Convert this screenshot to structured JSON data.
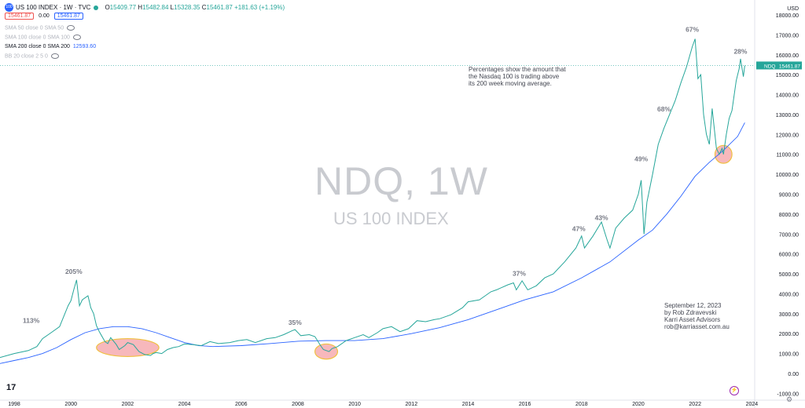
{
  "header": {
    "symbol_badge": "100",
    "title": "US 100 INDEX · 1W · TVC",
    "ohlc": [
      {
        "k": "O",
        "v": "15409.77"
      },
      {
        "k": "H",
        "v": "15482.84"
      },
      {
        "k": "L",
        "v": "15328.35"
      },
      {
        "k": "C",
        "v": "15461.87 +181.63 (+1.19%)"
      }
    ],
    "sell_price": "15461.87",
    "spread": "0.00",
    "buy_price": "15461.87"
  },
  "indicators": [
    {
      "label": "SMA 50 close 0 SMA 50",
      "value": "",
      "active": false
    },
    {
      "label": "SMA 100 close 0 SMA 100",
      "value": "",
      "active": false
    },
    {
      "label": "SMA 200 close 0 SMA 200",
      "value": "12593.60",
      "active": true
    },
    {
      "label": "BB 20 close 2 5 0",
      "value": "",
      "active": false
    }
  ],
  "watermark": {
    "symbol": "NDQ, 1W",
    "name": "US 100 INDEX"
  },
  "note_lines": [
    "Percentages show the amount that",
    "the Nasdaq 100 is trading above",
    "its 200 week moving average."
  ],
  "signature_lines": [
    "September 12, 2023",
    "by Rob Zdravevski",
    "Karri Asset Advisors",
    "rob@karriasset.com.au"
  ],
  "logo": "17",
  "colors": {
    "price": "#26a69a",
    "sma": "#2962ff",
    "highlight_fill": "#f4a0a6",
    "highlight_stroke": "#f0c040",
    "price_tag": "#26a69a",
    "axis_text": "#131722"
  },
  "chart_data": {
    "type": "line",
    "title": "",
    "y_axis": {
      "currency": "USD",
      "ticks": [
        -1000,
        0,
        1000,
        2000,
        3000,
        4000,
        5000,
        6000,
        7000,
        8000,
        9000,
        10000,
        11000,
        12000,
        13000,
        14000,
        15000,
        16000,
        17000,
        18000
      ],
      "tick_labels": [
        "-1000.00",
        "0.00",
        "1000.00",
        "2000.00",
        "3000.00",
        "4000.00",
        "5000.00",
        "6000.00",
        "7000.00",
        "8000.00",
        "9000.00",
        "10000.00",
        "11000.00",
        "12000.00",
        "13000.00",
        "14000.00",
        "15000.00",
        "16000.00",
        "17000.00",
        "18000.00"
      ],
      "ylim": [
        -1000,
        18000
      ]
    },
    "x_axis": {
      "ticks": [
        1998,
        2000,
        2002,
        2004,
        2006,
        2008,
        2010,
        2012,
        2014,
        2016,
        2018,
        2020,
        2022,
        2024
      ],
      "xlim": [
        1997.5,
        2024.1
      ]
    },
    "series": [
      {
        "name": "NDQ",
        "last_value_label": "15461.87",
        "points": [
          [
            1997.5,
            800
          ],
          [
            1998.0,
            1000
          ],
          [
            1998.5,
            1150
          ],
          [
            1998.8,
            1350
          ],
          [
            1999.0,
            1750
          ],
          [
            1999.3,
            2050
          ],
          [
            1999.6,
            2350
          ],
          [
            1999.9,
            3400
          ],
          [
            2000.0,
            3650
          ],
          [
            2000.1,
            4200
          ],
          [
            2000.2,
            4700
          ],
          [
            2000.3,
            3400
          ],
          [
            2000.4,
            3700
          ],
          [
            2000.6,
            3900
          ],
          [
            2000.7,
            3300
          ],
          [
            2000.8,
            3000
          ],
          [
            2000.9,
            2400
          ],
          [
            2001.0,
            2100
          ],
          [
            2001.2,
            1600
          ],
          [
            2001.3,
            1500
          ],
          [
            2001.4,
            1800
          ],
          [
            2001.6,
            1450
          ],
          [
            2001.7,
            1200
          ],
          [
            2001.9,
            1400
          ],
          [
            2002.0,
            1550
          ],
          [
            2002.2,
            1450
          ],
          [
            2002.4,
            1100
          ],
          [
            2002.6,
            950
          ],
          [
            2002.8,
            900
          ],
          [
            2002.9,
            1000
          ],
          [
            2003.0,
            1050
          ],
          [
            2003.2,
            1000
          ],
          [
            2003.4,
            1200
          ],
          [
            2003.6,
            1300
          ],
          [
            2003.8,
            1350
          ],
          [
            2004.0,
            1480
          ],
          [
            2004.3,
            1450
          ],
          [
            2004.6,
            1400
          ],
          [
            2004.9,
            1600
          ],
          [
            2005.2,
            1500
          ],
          [
            2005.6,
            1550
          ],
          [
            2005.9,
            1650
          ],
          [
            2006.2,
            1700
          ],
          [
            2006.5,
            1550
          ],
          [
            2006.9,
            1750
          ],
          [
            2007.2,
            1800
          ],
          [
            2007.5,
            1950
          ],
          [
            2007.8,
            2150
          ],
          [
            2007.9,
            2200
          ],
          [
            2008.1,
            1900
          ],
          [
            2008.4,
            1950
          ],
          [
            2008.6,
            1850
          ],
          [
            2008.8,
            1400
          ],
          [
            2008.9,
            1200
          ],
          [
            2009.1,
            1100
          ],
          [
            2009.2,
            1250
          ],
          [
            2009.4,
            1350
          ],
          [
            2009.7,
            1650
          ],
          [
            2010.0,
            1800
          ],
          [
            2010.3,
            1950
          ],
          [
            2010.5,
            1800
          ],
          [
            2010.8,
            2050
          ],
          [
            2011.0,
            2250
          ],
          [
            2011.3,
            2350
          ],
          [
            2011.6,
            2100
          ],
          [
            2011.9,
            2250
          ],
          [
            2012.2,
            2650
          ],
          [
            2012.5,
            2600
          ],
          [
            2012.8,
            2700
          ],
          [
            2013.0,
            2750
          ],
          [
            2013.4,
            2950
          ],
          [
            2013.8,
            3300
          ],
          [
            2014.0,
            3600
          ],
          [
            2014.4,
            3700
          ],
          [
            2014.8,
            4100
          ],
          [
            2015.0,
            4200
          ],
          [
            2015.4,
            4450
          ],
          [
            2015.6,
            4550
          ],
          [
            2015.7,
            4200
          ],
          [
            2015.9,
            4650
          ],
          [
            2016.1,
            4200
          ],
          [
            2016.4,
            4400
          ],
          [
            2016.7,
            4800
          ],
          [
            2017.0,
            5000
          ],
          [
            2017.4,
            5600
          ],
          [
            2017.8,
            6300
          ],
          [
            2018.0,
            6900
          ],
          [
            2018.1,
            6300
          ],
          [
            2018.4,
            6900
          ],
          [
            2018.7,
            7600
          ],
          [
            2018.9,
            6700
          ],
          [
            2019.0,
            6300
          ],
          [
            2019.2,
            7300
          ],
          [
            2019.5,
            7800
          ],
          [
            2019.8,
            8200
          ],
          [
            2020.0,
            9000
          ],
          [
            2020.1,
            9700
          ],
          [
            2020.2,
            7000
          ],
          [
            2020.3,
            8600
          ],
          [
            2020.5,
            10000
          ],
          [
            2020.7,
            11500
          ],
          [
            2020.9,
            12300
          ],
          [
            2021.1,
            13000
          ],
          [
            2021.3,
            13700
          ],
          [
            2021.5,
            14600
          ],
          [
            2021.7,
            15400
          ],
          [
            2021.9,
            16400
          ],
          [
            2022.0,
            16800
          ],
          [
            2022.1,
            14800
          ],
          [
            2022.2,
            15000
          ],
          [
            2022.3,
            13000
          ],
          [
            2022.4,
            12000
          ],
          [
            2022.5,
            11500
          ],
          [
            2022.6,
            13300
          ],
          [
            2022.75,
            11300
          ],
          [
            2022.85,
            11000
          ],
          [
            2022.95,
            11300
          ],
          [
            2023.0,
            11000
          ],
          [
            2023.1,
            12000
          ],
          [
            2023.2,
            12800
          ],
          [
            2023.3,
            13200
          ],
          [
            2023.45,
            14700
          ],
          [
            2023.55,
            15300
          ],
          [
            2023.6,
            15800
          ],
          [
            2023.7,
            14900
          ],
          [
            2023.75,
            15461.87
          ]
        ]
      },
      {
        "name": "SMA 200",
        "points": [
          [
            1997.5,
            500
          ],
          [
            1998.0,
            650
          ],
          [
            1998.5,
            800
          ],
          [
            1999.0,
            1000
          ],
          [
            1999.5,
            1300
          ],
          [
            2000.0,
            1700
          ],
          [
            2000.5,
            2050
          ],
          [
            2001.0,
            2250
          ],
          [
            2001.5,
            2350
          ],
          [
            2002.0,
            2350
          ],
          [
            2002.5,
            2250
          ],
          [
            2003.0,
            2050
          ],
          [
            2003.5,
            1800
          ],
          [
            2004.0,
            1550
          ],
          [
            2004.5,
            1400
          ],
          [
            2005.0,
            1350
          ],
          [
            2006.0,
            1400
          ],
          [
            2007.0,
            1500
          ],
          [
            2008.0,
            1620
          ],
          [
            2009.0,
            1650
          ],
          [
            2010.0,
            1650
          ],
          [
            2011.0,
            1750
          ],
          [
            2012.0,
            2000
          ],
          [
            2013.0,
            2300
          ],
          [
            2014.0,
            2700
          ],
          [
            2015.0,
            3200
          ],
          [
            2016.0,
            3700
          ],
          [
            2017.0,
            4100
          ],
          [
            2018.0,
            4800
          ],
          [
            2019.0,
            5600
          ],
          [
            2020.0,
            6700
          ],
          [
            2020.5,
            7200
          ],
          [
            2021.0,
            8000
          ],
          [
            2021.5,
            8900
          ],
          [
            2022.0,
            9900
          ],
          [
            2022.5,
            10600
          ],
          [
            2023.0,
            11200
          ],
          [
            2023.5,
            11900
          ],
          [
            2023.75,
            12593.6
          ]
        ]
      }
    ],
    "annotations": [
      {
        "text": "113%",
        "x": 1998.6,
        "y": 2550
      },
      {
        "text": "205%",
        "x": 2000.1,
        "y": 5000
      },
      {
        "text": "35%",
        "x": 2007.9,
        "y": 2450
      },
      {
        "text": "37%",
        "x": 2015.8,
        "y": 4900
      },
      {
        "text": "47%",
        "x": 2017.9,
        "y": 7150
      },
      {
        "text": "43%",
        "x": 2018.7,
        "y": 7700
      },
      {
        "text": "49%",
        "x": 2020.1,
        "y": 10650
      },
      {
        "text": "68%",
        "x": 2020.9,
        "y": 13150
      },
      {
        "text": "67%",
        "x": 2021.9,
        "y": 17150
      },
      {
        "text": "28%",
        "x": 2023.6,
        "y": 16050
      }
    ],
    "highlights": [
      {
        "x_center": 2002.0,
        "y_center": 1300,
        "x_half": 1.1,
        "y_half": 450
      },
      {
        "x_center": 2009.0,
        "y_center": 1100,
        "x_half": 0.4,
        "y_half": 380
      },
      {
        "x_center": 2023.0,
        "y_center": 11000,
        "x_half": 0.3,
        "y_half": 450
      }
    ]
  }
}
